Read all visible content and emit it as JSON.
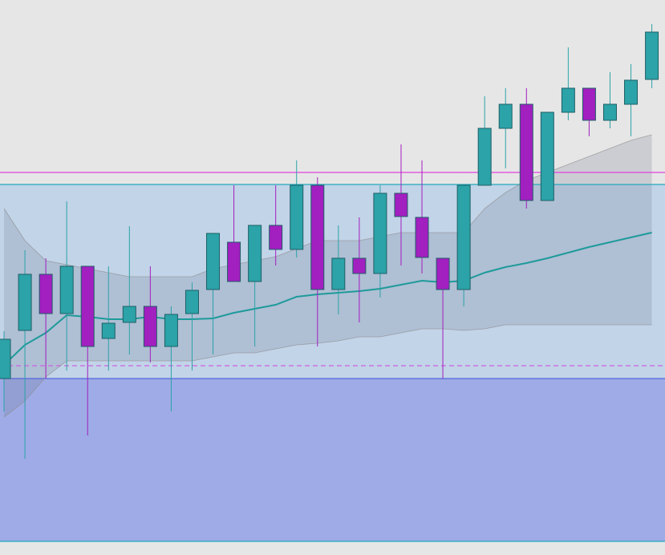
{
  "chart_data": {
    "type": "candlestick",
    "categories": [
      null,
      null,
      null,
      null,
      null,
      null,
      null,
      null,
      null,
      null,
      null,
      null,
      null,
      null,
      null,
      null,
      null,
      null,
      null,
      null,
      null,
      null,
      null,
      null,
      null,
      null,
      null,
      null,
      null,
      null,
      null,
      null
    ],
    "open": [
      220,
      280,
      350,
      301,
      360,
      270,
      290,
      310,
      260,
      301,
      331,
      390,
      341,
      411,
      381,
      461,
      331,
      370,
      351,
      451,
      421,
      370,
      331,
      461,
      532,
      562,
      442,
      552,
      582,
      542,
      562,
      593
    ],
    "close": [
      269,
      350,
      301,
      360,
      260,
      289,
      310,
      260,
      300,
      330,
      401,
      341,
      411,
      381,
      461,
      331,
      370,
      351,
      451,
      422,
      371,
      331,
      461,
      532,
      562,
      442,
      552,
      582,
      542,
      562,
      592,
      652
    ],
    "high": [
      279,
      380,
      370,
      441,
      360,
      360,
      410,
      360,
      310,
      340,
      401,
      461,
      411,
      461,
      492,
      471,
      411,
      421,
      461,
      512,
      492,
      370,
      461,
      572,
      582,
      582,
      552,
      633,
      582,
      602,
      612,
      662
    ],
    "low": [
      179,
      120,
      220,
      230,
      149,
      230,
      250,
      240,
      179,
      230,
      250,
      341,
      260,
      361,
      371,
      260,
      300,
      290,
      321,
      361,
      351,
      220,
      310,
      461,
      482,
      432,
      442,
      542,
      522,
      532,
      522,
      582
    ],
    "up_color": "#2ba3a8",
    "down_color": "#a21fc0",
    "series": [
      {
        "color": "#1e9a9a",
        "values": [
          237,
          262,
          277,
          299,
          297,
          294,
          294,
          297,
          294,
          294,
          295,
          302,
          307,
          312,
          322,
          325,
          327,
          329,
          332,
          337,
          342,
          340,
          342,
          352,
          359,
          364,
          370,
          377,
          384,
          390,
          396,
          402
        ]
      },
      {
        "color": "#8c8c8c",
        "values": [
          432,
          392,
          367,
          362,
          357,
          352,
          347,
          347,
          347,
          347,
          357,
          362,
          367,
          372,
          382,
          392,
          392,
          392,
          397,
          402,
          402,
          402,
          402,
          432,
          452,
          467,
          477,
          487,
          497,
          507,
          517,
          524
        ]
      },
      {
        "color": "#8c8c8c",
        "values": [
          172,
          192,
          222,
          242,
          242,
          242,
          242,
          242,
          242,
          242,
          247,
          252,
          252,
          257,
          262,
          264,
          267,
          272,
          272,
          277,
          282,
          282,
          280,
          282,
          287,
          287,
          287,
          287,
          287,
          287,
          287,
          287
        ]
      }
    ],
    "zones": [
      {
        "from": 220,
        "to": 462,
        "color": "rgba(150,190,235,0.45)"
      },
      {
        "from": 17,
        "to": 220,
        "color": "rgba(120,140,230,0.65)"
      }
    ],
    "levels": [
      {
        "value": 462,
        "color": "#22aabb"
      },
      {
        "value": 477,
        "color": "#e040e0"
      },
      {
        "value": 236,
        "color": "#d060e0",
        "dashed": true
      },
      {
        "value": 220,
        "color": "#5566dd"
      },
      {
        "value": 17,
        "color": "#22aabb"
      }
    ],
    "ylim": [
      0,
      692
    ]
  }
}
